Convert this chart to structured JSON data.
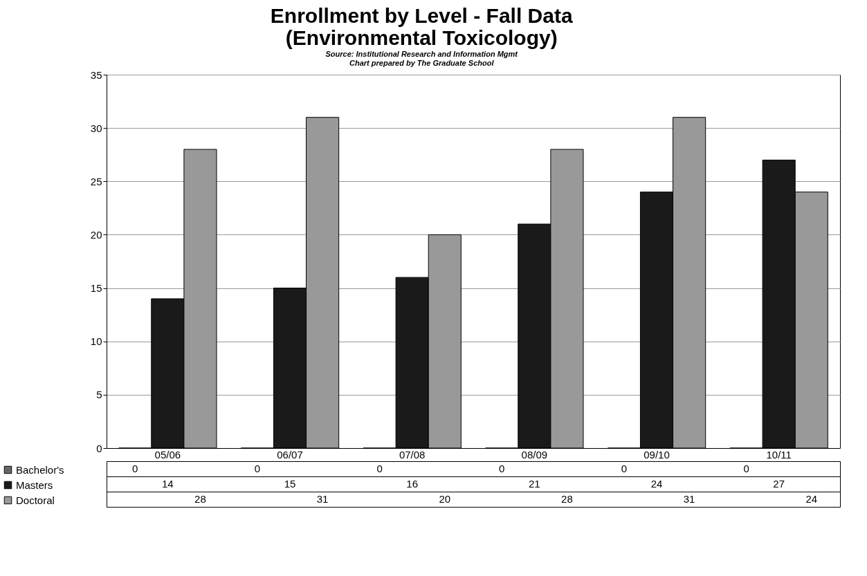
{
  "chart_data": {
    "type": "bar",
    "title": "Enrollment by Level - Fall Data",
    "subtitle": "(Environmental Toxicology)",
    "annotations": [
      "Source: Institutional Research and Information Mgmt",
      "Chart prepared by The Graduate School"
    ],
    "categories": [
      "05/06",
      "06/07",
      "07/08",
      "08/09",
      "09/10",
      "10/11"
    ],
    "series": [
      {
        "name": "Bachelor's",
        "color": "#666666",
        "values": [
          0,
          0,
          0,
          0,
          0,
          0
        ]
      },
      {
        "name": "Masters",
        "color": "#1a1a1a",
        "values": [
          14,
          15,
          16,
          21,
          24,
          27
        ]
      },
      {
        "name": "Doctoral",
        "color": "#999999",
        "values": [
          28,
          31,
          20,
          28,
          31,
          24
        ]
      }
    ],
    "ylim": [
      0,
      35
    ],
    "yticks": [
      0,
      5,
      10,
      15,
      20,
      25,
      30,
      35
    ],
    "grid": "y",
    "legend": "bottom left",
    "data_labels": true
  }
}
